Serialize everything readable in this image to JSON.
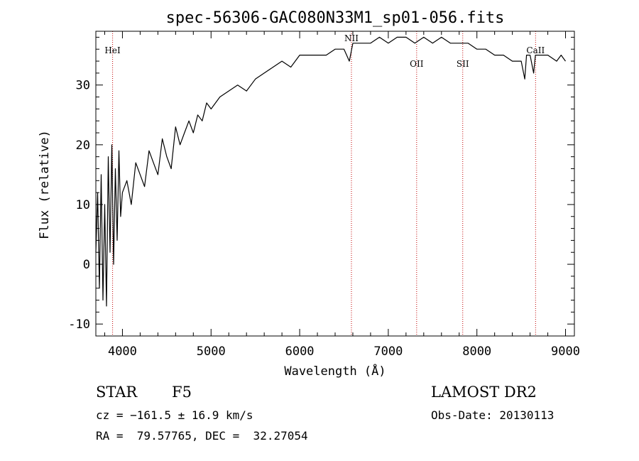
{
  "chart_data": {
    "type": "line",
    "title": "spec-56306-GAC080N33M1_sp01-056.fits",
    "xlabel": "Wavelength (Å)",
    "ylabel": "Flux (relative)",
    "xlim": [
      3700,
      9100
    ],
    "ylim": [
      -12,
      39
    ],
    "xticks": [
      4000,
      5000,
      6000,
      7000,
      8000,
      9000
    ],
    "yticks": [
      -10,
      0,
      10,
      20,
      30
    ],
    "grid": false,
    "series": [
      {
        "x": [
          3700,
          3720,
          3740,
          3760,
          3780,
          3800,
          3820,
          3840,
          3860,
          3880,
          3900,
          3920,
          3940,
          3960,
          3980,
          4000,
          4050,
          4100,
          4150,
          4200,
          4250,
          4300,
          4350,
          4400,
          4450,
          4500,
          4550,
          4600,
          4650,
          4700,
          4750,
          4800,
          4850,
          4900,
          4950,
          5000,
          5100,
          5200,
          5300,
          5400,
          5500,
          5600,
          5700,
          5800,
          5900,
          6000,
          6100,
          6200,
          6300,
          6400,
          6500,
          6560,
          6600,
          6700,
          6800,
          6900,
          7000,
          7100,
          7200,
          7300,
          7400,
          7500,
          7600,
          7700,
          7800,
          7900,
          8000,
          8100,
          8200,
          8300,
          8400,
          8500,
          8540,
          8560,
          8600,
          8640,
          8660,
          8700,
          8800,
          8900,
          8950,
          9000
        ],
        "y": [
          2,
          12,
          -4,
          15,
          -6,
          10,
          -7,
          18,
          2,
          20,
          0,
          16,
          4,
          19,
          8,
          12,
          14,
          10,
          17,
          15,
          13,
          19,
          17,
          15,
          21,
          18,
          16,
          23,
          20,
          22,
          24,
          22,
          25,
          24,
          27,
          26,
          28,
          29,
          30,
          29,
          31,
          32,
          33,
          34,
          33,
          35,
          35,
          35,
          35,
          36,
          36,
          34,
          37,
          37,
          37,
          38,
          37,
          38,
          38,
          37,
          38,
          37,
          38,
          37,
          37,
          37,
          36,
          36,
          35,
          35,
          34,
          34,
          31,
          35,
          35,
          32,
          35,
          35,
          35,
          34,
          35,
          34
        ]
      }
    ],
    "reference_lines": [
      {
        "name": "HeI",
        "x": 3889
      },
      {
        "name": "NII",
        "x": 6584
      },
      {
        "name": "OII",
        "x": 7320
      },
      {
        "name": "SII",
        "x": 7840
      },
      {
        "name": "CaII",
        "x": 8662
      }
    ],
    "line_color": "#000000",
    "reference_line_color": "#c00000"
  },
  "info": {
    "object_class": "STAR",
    "subclass": "F5",
    "survey": "LAMOST DR2",
    "redshift": "cz = −161.5 ± 16.9 km/s",
    "obs_date": "Obs-Date: 20130113",
    "coords": "RA =  79.57765, DEC =  32.27054"
  }
}
